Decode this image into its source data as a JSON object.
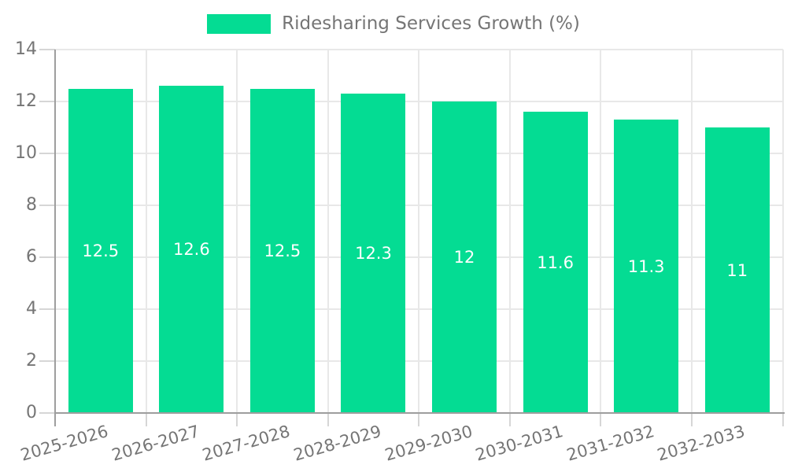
{
  "legend": {
    "label": "Ridesharing Services Growth (%)",
    "swatch_color": "#04dc93"
  },
  "chart_data": {
    "type": "bar",
    "title": "Ridesharing Services Growth (%)",
    "categories": [
      "2025-2026",
      "2026-2027",
      "2027-2028",
      "2028-2029",
      "2029-2030",
      "2030-2031",
      "2031-2032",
      "2032-2033"
    ],
    "values": [
      12.5,
      12.6,
      12.5,
      12.3,
      12,
      11.6,
      11.3,
      11
    ],
    "value_labels": [
      "12.5",
      "12.6",
      "12.5",
      "12.3",
      "12",
      "11.6",
      "11.3",
      "11"
    ],
    "xlabel": "",
    "ylabel": "",
    "ylim": [
      0,
      14
    ],
    "yticks": [
      0,
      2,
      4,
      6,
      8,
      10,
      12,
      14
    ],
    "grid": true,
    "legend_position": "top-center",
    "bar_color": "#04dc93",
    "value_label_color": "#ffffff",
    "grid_color": "#e8e8e8",
    "tick_color": "#d6d6d6",
    "axis_color": "#9e9e9e",
    "tick_label_color": "#757575"
  }
}
